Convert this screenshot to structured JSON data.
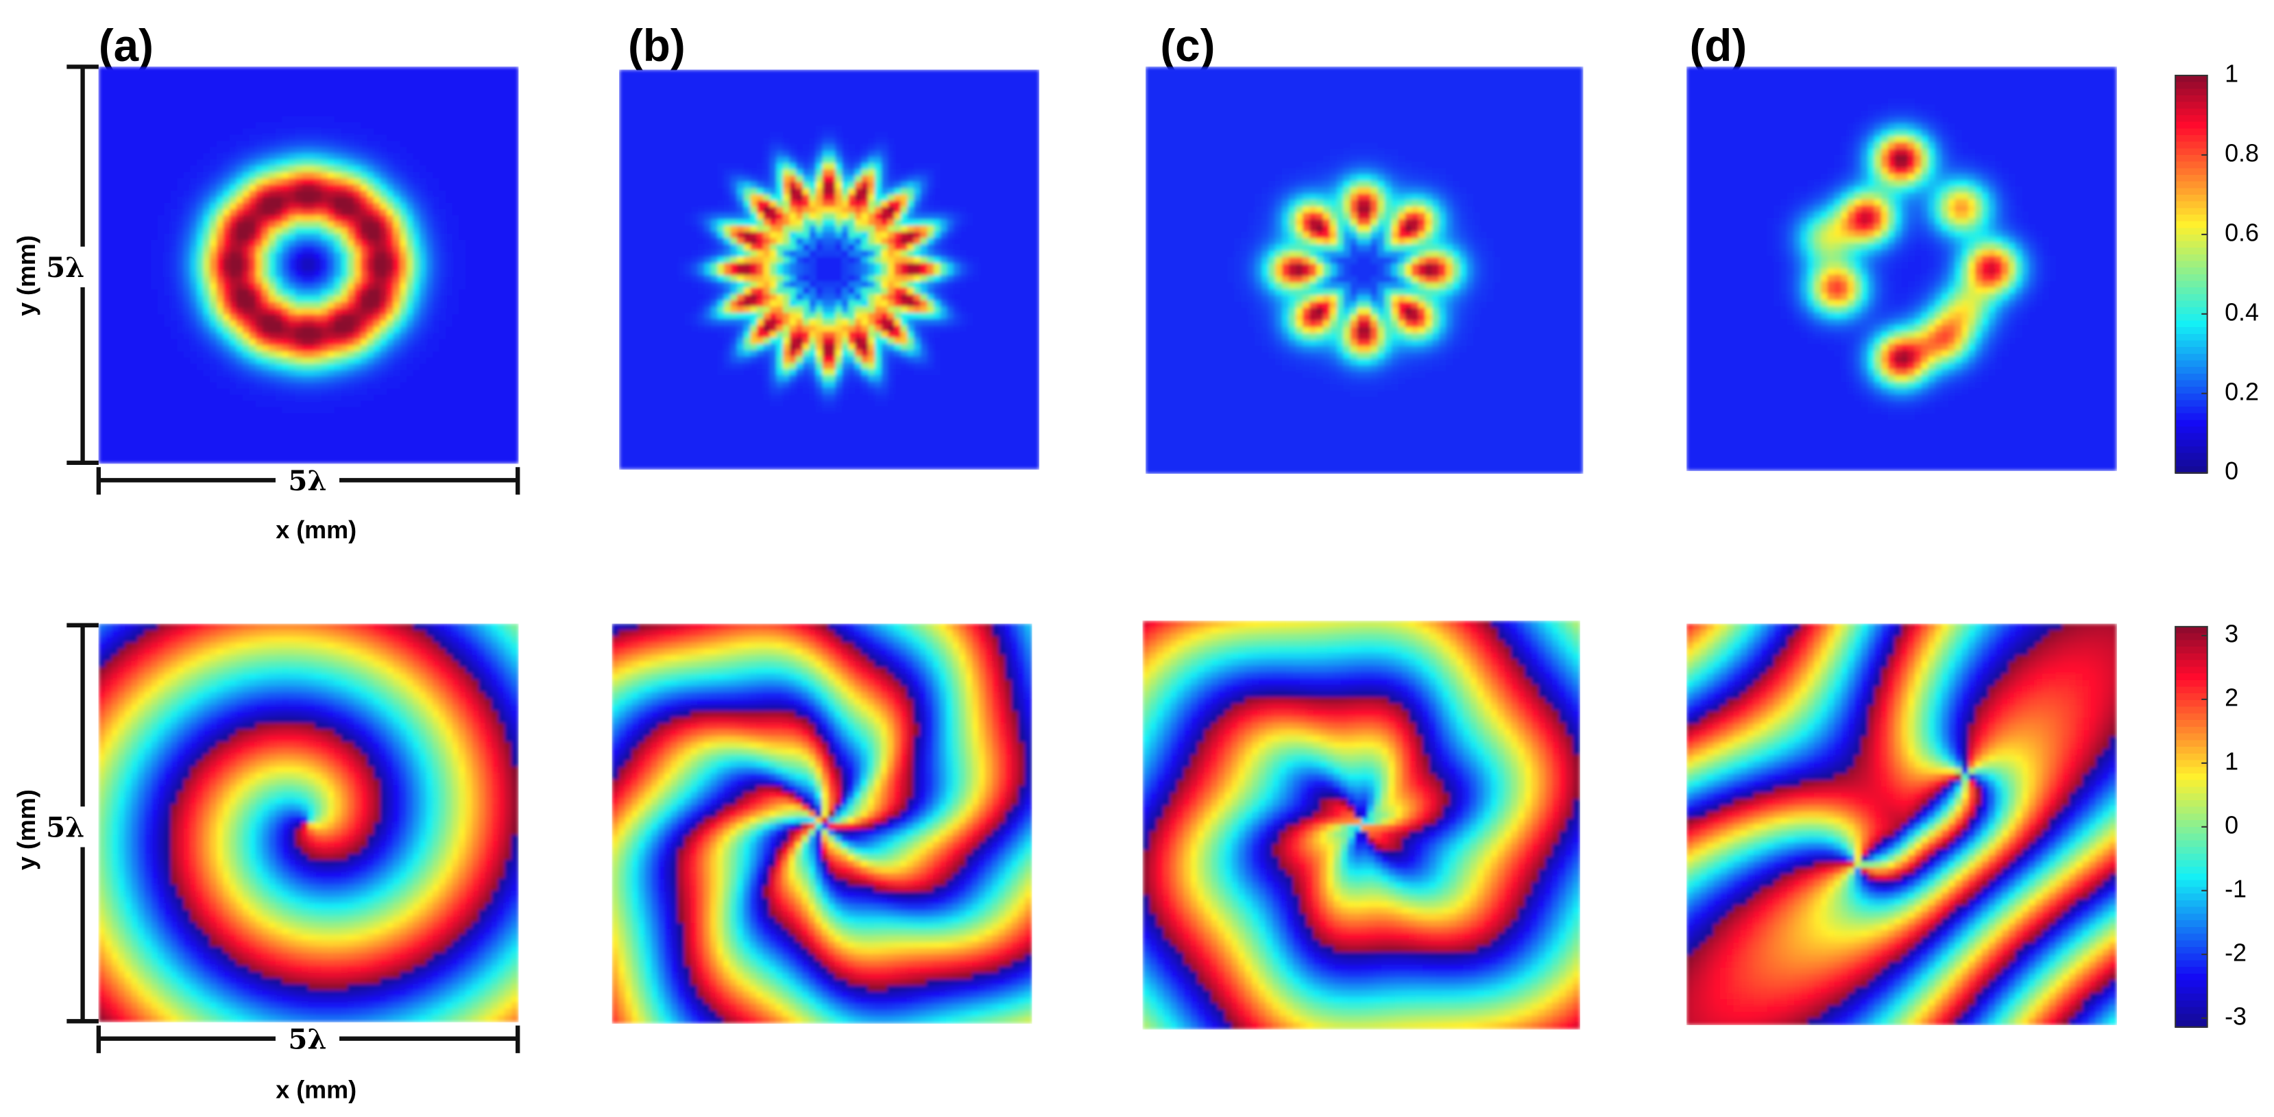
{
  "panel_labels": [
    "(a)",
    "(b)",
    "(c)",
    "(d)"
  ],
  "axes": {
    "scale_label": "5λ",
    "x_label": "x (mm)",
    "y_label": "y (mm)"
  },
  "colorbars": [
    {
      "lim": [
        0,
        1
      ],
      "ticks": [
        0,
        0.2,
        0.4,
        0.6,
        0.8,
        1
      ]
    },
    {
      "lim": [
        -3.14,
        3.14
      ],
      "ticks": [
        -3,
        -2,
        -1,
        0,
        1,
        2,
        3
      ]
    }
  ]
}
